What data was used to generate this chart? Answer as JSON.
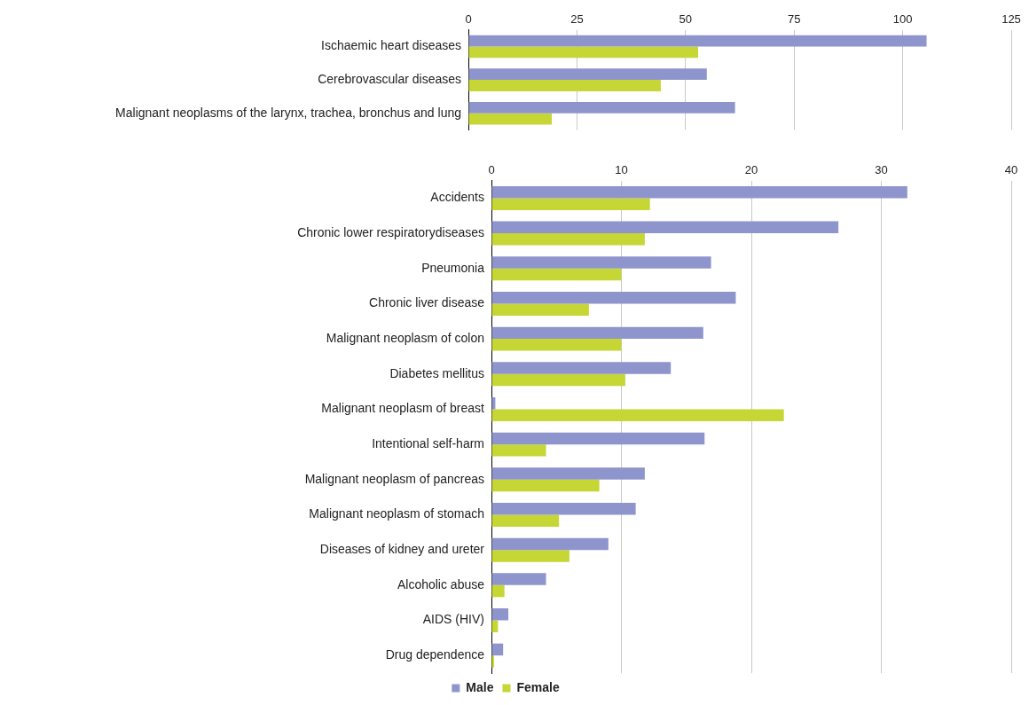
{
  "chart_data": [
    {
      "type": "bar",
      "orientation": "horizontal",
      "categories": [
        "Ischaemic heart diseases",
        "Cerebrovascular diseases",
        "Malignant neoplasms of the larynx, trachea, bronchus and lung"
      ],
      "series": [
        {
          "color": "#8e94cc",
          "values": [
            105.5,
            54.9,
            61.4
          ]
        },
        {
          "color": "#c5d635",
          "values": [
            52.9,
            44.3,
            19.2
          ]
        }
      ],
      "xlim": [
        0,
        125
      ],
      "xticks": [
        0,
        25,
        50,
        75,
        100,
        125
      ],
      "grid": "x",
      "legend": false
    },
    {
      "type": "bar",
      "orientation": "horizontal",
      "categories": [
        "Accidents",
        "Chronic lower respiratorydiseases",
        "Pneumonia",
        "Chronic liver disease",
        "Malignant neoplasm of colon",
        "Diabetes mellitus",
        "Malignant neoplasm of breast",
        "Intentional self-harm",
        "Malignant neoplasm of pancreas",
        "Malignant neoplasm of stomach",
        "Diseases of kidney and ureter",
        "Alcoholic abuse",
        "AIDS (HIV)",
        "Drug dependence"
      ],
      "series": [
        {
          "name": "Male",
          "color": "#8e94cc",
          "values": [
            32.0,
            26.7,
            16.9,
            18.8,
            16.3,
            13.8,
            0.3,
            16.4,
            11.8,
            11.1,
            9.0,
            4.2,
            1.3,
            0.9
          ]
        },
        {
          "name": "Female",
          "color": "#c5d635",
          "values": [
            12.2,
            11.8,
            10.0,
            7.5,
            10.0,
            10.3,
            22.5,
            4.2,
            8.3,
            5.2,
            6.0,
            1.0,
            0.5,
            0.2
          ]
        }
      ],
      "xlim": [
        0,
        40
      ],
      "xticks": [
        0,
        10,
        20,
        30,
        40
      ],
      "grid": "x",
      "legend": "bottom"
    }
  ]
}
